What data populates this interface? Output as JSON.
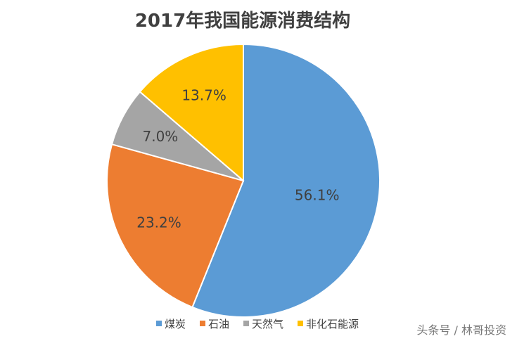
{
  "chart_data": {
    "type": "pie",
    "title": "2017年我国能源消费结构",
    "categories": [
      "煤炭",
      "石油",
      "天然气",
      "非化石能源"
    ],
    "values": [
      56.1,
      23.2,
      7.0,
      13.7
    ],
    "data_labels": [
      "56.1%",
      "23.2%",
      "7.0%",
      "13.7%"
    ],
    "colors": [
      "#5B9BD5",
      "#ED7D31",
      "#A5A5A5",
      "#FFC000"
    ],
    "start_angle_deg": 0,
    "direction": "clockwise",
    "legend_position": "bottom"
  },
  "watermark": "头条号 / 林哥投资"
}
